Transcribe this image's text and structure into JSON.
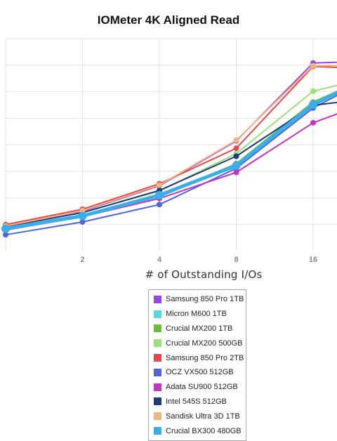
{
  "chart_data": {
    "type": "line",
    "title": "IOMeter 4K Aligned Read",
    "xlabel": "# of Outstanding I/Os",
    "ylabel": "",
    "x": [
      1,
      2,
      4,
      8,
      16,
      32
    ],
    "x_tick_labels": [
      "2",
      "4",
      "8",
      "16"
    ],
    "x_scale": "log2",
    "grid": true,
    "legend_position": "bottom",
    "series": [
      {
        "name": "Samsung 850 Pro 1TB",
        "color": "#9a45e6",
        "values": [
          0.2,
          0.41,
          0.79,
          1.46,
          2.62,
          2.66
        ]
      },
      {
        "name": "Micron M600 1TB",
        "color": "#5ad9d6",
        "values": [
          0.15,
          0.33,
          0.62,
          1.11,
          2.03,
          2.56
        ]
      },
      {
        "name": "Crucial MX200 1TB",
        "color": "#6abf3c",
        "values": [
          0.16,
          0.35,
          0.63,
          1.12,
          2.04,
          2.55
        ]
      },
      {
        "name": "Crucial MX200 500GB",
        "color": "#9be07a",
        "values": [
          0.18,
          0.39,
          0.71,
          1.27,
          2.2,
          2.48
        ]
      },
      {
        "name": "Samsung 850 Pro 2TB",
        "color": "#e8474a",
        "values": [
          0.21,
          0.44,
          0.82,
          1.35,
          2.57,
          2.52
        ]
      },
      {
        "name": "OCZ VX500 512GB",
        "color": "#4f63e0",
        "values": [
          0.06,
          0.25,
          0.51,
          1.05,
          1.95,
          2.55
        ]
      },
      {
        "name": "Adata SU900 512GB",
        "color": "#c633c0",
        "values": [
          0.13,
          0.33,
          0.6,
          0.99,
          1.73,
          2.15
        ]
      },
      {
        "name": "Intel 545S 512GB",
        "color": "#233a78",
        "values": [
          0.18,
          0.39,
          0.72,
          1.23,
          1.99,
          2.13
        ]
      },
      {
        "name": "Sandisk Ultra 3D 1TB",
        "color": "#f1b780",
        "values": [
          0.19,
          0.42,
          0.8,
          1.47,
          2.58,
          2.59
        ]
      },
      {
        "name": "Crucial BX300 480GB",
        "color": "#3aaee8",
        "values": [
          0.15,
          0.34,
          0.65,
          1.09,
          2.0,
          2.57
        ]
      }
    ]
  }
}
